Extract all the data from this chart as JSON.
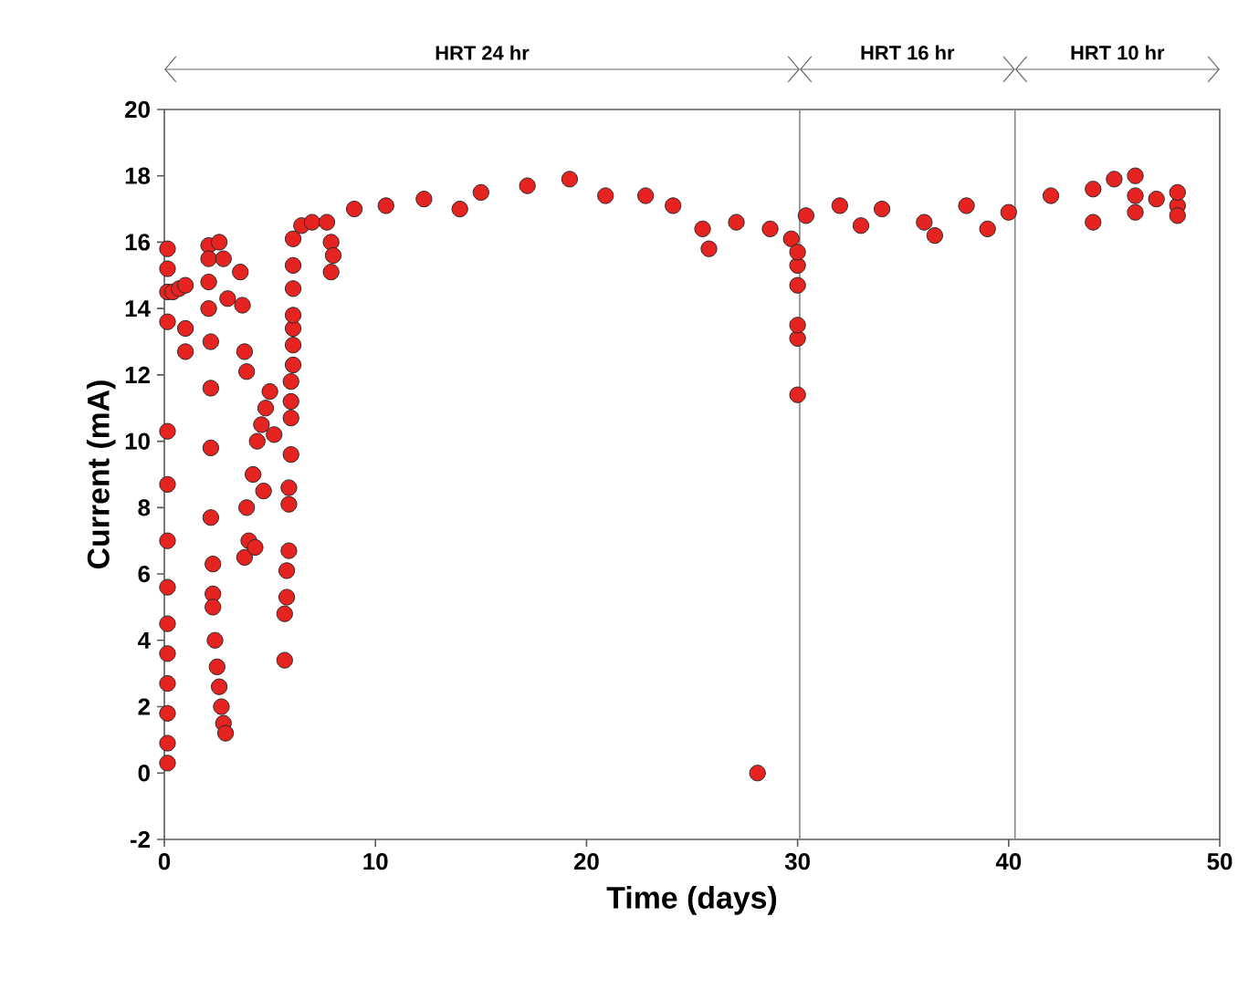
{
  "chart_data": {
    "type": "scatter",
    "xlabel": "Time (days)",
    "ylabel": "Current (mA)",
    "xlim": [
      0,
      50
    ],
    "ylim": [
      -2,
      20
    ],
    "xticks": [
      0,
      10,
      20,
      30,
      40,
      50
    ],
    "yticks": [
      -2,
      0,
      2,
      4,
      6,
      8,
      10,
      12,
      14,
      16,
      18,
      20
    ],
    "marker": "circle",
    "grid": false,
    "ref_lines": [
      {
        "axis": "x",
        "value": 30.1,
        "color": "#888888"
      },
      {
        "axis": "x",
        "value": 40.3,
        "color": "#888888"
      }
    ],
    "annotations": [
      "HRT 24 hr",
      "HRT 16 hr",
      "HRT 10 hr"
    ],
    "series": [
      {
        "color": "#e52421",
        "x": [
          0.15,
          0.15,
          0.15,
          0.15,
          0.15,
          0.15,
          0.15,
          0.15,
          0.15,
          0.15,
          0.15,
          0.15,
          0.15,
          0.15,
          0.4,
          0.7,
          1.0,
          1.0,
          1.0,
          2.1,
          2.1,
          2.1,
          2.1,
          2.2,
          2.2,
          2.2,
          2.2,
          2.3,
          2.3,
          2.3,
          2.4,
          2.5,
          2.6,
          2.7,
          2.8,
          2.9,
          2.6,
          2.8,
          3.0,
          3.6,
          3.7,
          3.8,
          3.9,
          3.8,
          3.9,
          4.0,
          4.2,
          4.4,
          4.6,
          4.8,
          5.0,
          4.3,
          4.7,
          5.2,
          5.7,
          5.7,
          5.8,
          5.8,
          5.9,
          5.9,
          5.9,
          6.0,
          6.0,
          6.0,
          6.0,
          6.1,
          6.1,
          6.1,
          6.1,
          6.1,
          6.1,
          6.1,
          6.5,
          7.0,
          7.7,
          7.9,
          7.9,
          8.0,
          9.0,
          10.5,
          12.3,
          14.0,
          15.0,
          17.2,
          19.2,
          20.9,
          22.8,
          24.1,
          25.5,
          25.8,
          27.1,
          28.1,
          28.7,
          29.7,
          30.0,
          30.0,
          30.0,
          30.0,
          30.0,
          30.0,
          30.4,
          32.0,
          33.0,
          34.0,
          36.0,
          36.5,
          38.0,
          39.0,
          40.0,
          42.0,
          44.0,
          44.0,
          45.0,
          46.0,
          46.0,
          46.0,
          47.0,
          48.0,
          48.0,
          48.0
        ],
        "values": [
          15.8,
          15.2,
          14.5,
          13.6,
          10.3,
          8.7,
          7.0,
          5.6,
          4.5,
          3.6,
          2.7,
          1.8,
          0.9,
          0.3,
          14.5,
          14.6,
          13.4,
          12.7,
          14.7,
          15.9,
          15.5,
          14.8,
          14.0,
          13.0,
          11.6,
          9.8,
          7.7,
          6.3,
          5.4,
          5.0,
          4.0,
          3.2,
          2.6,
          2.0,
          1.5,
          1.2,
          16.0,
          15.5,
          14.3,
          15.1,
          14.1,
          12.7,
          12.1,
          6.5,
          8.0,
          7.0,
          9.0,
          10.0,
          10.5,
          11.0,
          11.5,
          6.8,
          8.5,
          10.2,
          3.4,
          4.8,
          5.3,
          6.1,
          6.7,
          8.1,
          8.6,
          9.6,
          10.7,
          11.2,
          11.8,
          12.3,
          12.9,
          13.4,
          13.8,
          14.6,
          15.3,
          16.1,
          16.5,
          16.6,
          16.6,
          16.0,
          15.1,
          15.6,
          17.0,
          17.1,
          17.3,
          17.0,
          17.5,
          17.7,
          17.9,
          17.4,
          17.4,
          17.1,
          16.4,
          15.8,
          16.6,
          0.0,
          16.4,
          16.1,
          11.4,
          13.1,
          13.5,
          14.7,
          15.3,
          15.7,
          16.8,
          17.1,
          16.5,
          17.0,
          16.6,
          16.2,
          17.1,
          16.4,
          16.9,
          17.4,
          17.6,
          16.6,
          17.9,
          17.4,
          18.0,
          16.9,
          17.3,
          17.1,
          17.5,
          16.8
        ]
      }
    ]
  }
}
